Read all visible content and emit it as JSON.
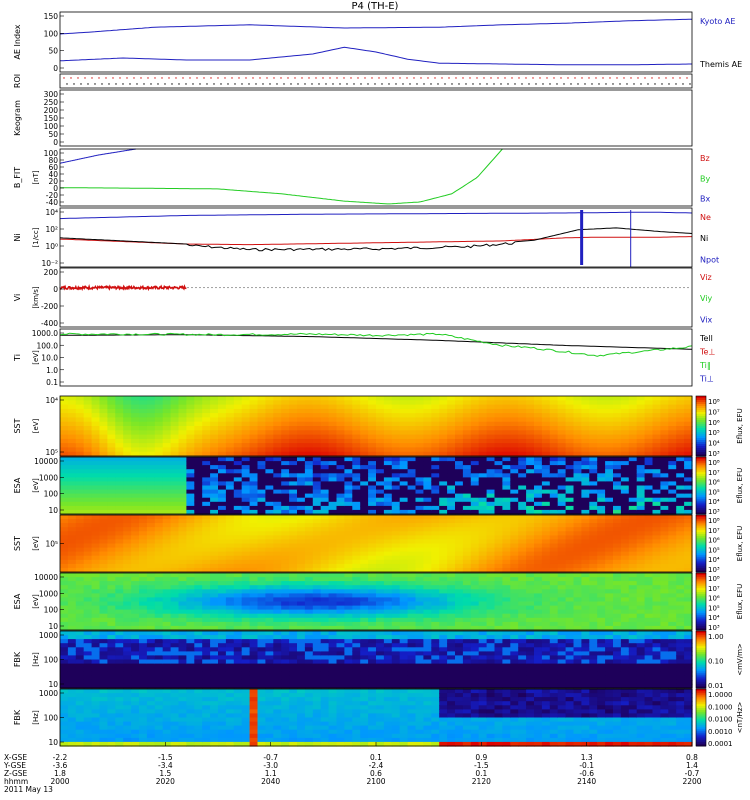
{
  "title": "P4 (TH-E)",
  "date_label": "2011 May 13",
  "colors": {
    "black": "#000000",
    "blue": "#2020c0",
    "red": "#d01010",
    "green": "#22cc22"
  },
  "chart_data": [
    {
      "type": "line",
      "id": "ae",
      "ylabel": "AE Index",
      "ylim": [
        0,
        150
      ],
      "yticks": [
        "150",
        "100",
        "50",
        "0"
      ],
      "series": [
        {
          "name": "Kyoto AE",
          "color": "blue",
          "x": [
            0,
            0.05,
            0.15,
            0.3,
            0.45,
            0.6,
            0.7,
            0.8,
            0.9,
            1
          ],
          "values": [
            95,
            100,
            112,
            118,
            110,
            112,
            118,
            122,
            128,
            132
          ]
        },
        {
          "name": "Themis AE",
          "color": "blue",
          "x": [
            0,
            0.1,
            0.2,
            0.3,
            0.4,
            0.45,
            0.5,
            0.55,
            0.6,
            0.7,
            0.8,
            0.9,
            1
          ],
          "values": [
            28,
            35,
            30,
            30,
            45,
            62,
            50,
            32,
            22,
            20,
            18,
            18,
            20
          ]
        }
      ]
    },
    {
      "type": "roi",
      "id": "roi",
      "ylabel": "ROI"
    },
    {
      "type": "line",
      "id": "keo",
      "ylabel": "Keogram",
      "ylim": [
        0,
        300
      ],
      "yticks": [
        "300",
        "250",
        "200",
        "150",
        "100",
        "50",
        "0"
      ],
      "series": []
    },
    {
      "type": "line",
      "id": "bfit",
      "ylabel": "B_FIT",
      "unit": "[nT]",
      "ylim": [
        -40,
        100
      ],
      "yticks": [
        "100",
        "80",
        "60",
        "40",
        "20",
        "0",
        "-20",
        "-40"
      ],
      "series": [
        {
          "name": "Bz",
          "color": "red",
          "x": [],
          "values": []
        },
        {
          "name": "By",
          "color": "green",
          "x": [
            0,
            0.1,
            0.25,
            0.35,
            0.45,
            0.52,
            0.57,
            0.62,
            0.66,
            0.7
          ],
          "values": [
            5,
            4,
            2,
            -10,
            -28,
            -35,
            -30,
            -10,
            30,
            100
          ]
        },
        {
          "name": "Bx",
          "color": "blue",
          "x": [
            0,
            0.06,
            0.12
          ],
          "values": [
            65,
            85,
            100
          ]
        }
      ]
    },
    {
      "type": "line",
      "id": "ni",
      "ylabel": "Ni",
      "unit": "[1/cc]",
      "ylim": [
        -4.5,
        5
      ],
      "log": true,
      "yticks": [
        "10⁴",
        "10²",
        "10⁰",
        "10⁻²"
      ],
      "series": [
        {
          "name": "Ne",
          "color": "red",
          "x": [
            0,
            0.2,
            0.3,
            0.5,
            0.7,
            0.8,
            0.85,
            0.95,
            1
          ],
          "values": [
            0,
            -0.8,
            -0.9,
            -0.6,
            -0.3,
            0.2,
            0.3,
            0.3,
            0.4
          ]
        },
        {
          "name": "Ni",
          "color": "black",
          "x": [
            0,
            0.2,
            0.3,
            0.5,
            0.65,
            0.75,
            0.82,
            0.88,
            0.95,
            1
          ],
          "values": [
            0.2,
            -0.8,
            -1.5,
            -1.4,
            -1.0,
            -0.2,
            1.5,
            1.8,
            1.2,
            0.9
          ]
        },
        {
          "name": "Npot",
          "color": "blue",
          "x": [
            0,
            0.2,
            0.4,
            0.6,
            0.8,
            0.9,
            0.95,
            1
          ],
          "values": [
            3.3,
            3.8,
            4.0,
            4.1,
            4.2,
            4.3,
            4.3,
            4.2
          ]
        }
      ]
    },
    {
      "type": "line",
      "id": "vi",
      "ylabel": "Vi",
      "unit": "[km/s]",
      "ylim": [
        -600,
        300
      ],
      "yticks": [
        "200",
        "0",
        "-200",
        "-400"
      ],
      "series": [
        {
          "name": "Viz",
          "color": "red",
          "x": [
            0,
            0.2
          ],
          "values": [
            0,
            0
          ]
        },
        {
          "name": "Viy",
          "color": "green",
          "x": [],
          "values": []
        },
        {
          "name": "Vix",
          "color": "blue",
          "x": [],
          "values": []
        }
      ]
    },
    {
      "type": "line",
      "id": "ti",
      "ylabel": "Ti",
      "unit": "[eV]",
      "ylim": [
        -1.2,
        3.3
      ],
      "log": true,
      "yticks": [
        "1000.0",
        "100.0",
        "10.0",
        "1.0",
        "0.1"
      ],
      "series": [
        {
          "name": "Tell",
          "color": "black",
          "x": [
            0,
            0.2,
            0.4,
            0.6,
            0.8,
            1
          ],
          "values": [
            2.8,
            2.85,
            2.7,
            2.4,
            2.0,
            1.7
          ]
        },
        {
          "name": "Te⊥",
          "color": "red",
          "x": [],
          "values": []
        },
        {
          "name": "Ti‖",
          "color": "green",
          "x": [
            0,
            0.1,
            0.25,
            0.4,
            0.5,
            0.6,
            0.7,
            0.75,
            0.85,
            1
          ],
          "values": [
            2.9,
            2.9,
            2.85,
            2.9,
            2.8,
            2.9,
            2.0,
            1.8,
            1.2,
            1.9
          ]
        },
        {
          "name": "Ti⊥",
          "color": "blue",
          "x": [],
          "values": []
        }
      ]
    },
    {
      "type": "heatmap",
      "id": "sst1",
      "ylabel": "SST",
      "unit": "[eV]",
      "yticks": [
        "10⁴",
        "10⁵"
      ],
      "cbar_label": "Eflux, EFU",
      "cbar_ticks": [
        "10⁸",
        "10⁷",
        "10⁶",
        "10⁵",
        "10⁴",
        "10³"
      ]
    },
    {
      "type": "heatmap",
      "id": "esa1",
      "ylabel": "ESA",
      "unit": "[eV]",
      "yticks": [
        "10000",
        "1000",
        "100",
        "10"
      ],
      "cbar_label": "Eflux, EFU",
      "cbar_ticks": [
        "10⁸",
        "10⁷",
        "10⁶",
        "10⁵",
        "10⁴",
        "10³"
      ]
    },
    {
      "type": "heatmap",
      "id": "sst2",
      "ylabel": "SST",
      "unit": "[eV]",
      "yticks": [
        "10⁵"
      ],
      "cbar_label": "Eflux, EFU",
      "cbar_ticks": [
        "10⁸",
        "10⁷",
        "10⁶",
        "10⁵",
        "10⁴",
        "10³"
      ]
    },
    {
      "type": "heatmap",
      "id": "esa2",
      "ylabel": "ESA",
      "unit": "[eV]",
      "yticks": [
        "10000",
        "1000",
        "100",
        "10"
      ],
      "cbar_label": "Eflux, EFU",
      "cbar_ticks": [
        "10⁸",
        "10⁷",
        "10⁶",
        "10⁵",
        "10⁴",
        "10³"
      ]
    },
    {
      "type": "heatmap",
      "id": "fbk1",
      "ylabel": "FBK",
      "unit": "[Hz]",
      "yticks": [
        "1000",
        "100",
        "10"
      ],
      "cbar_label": "<mV/m>",
      "cbar_ticks": [
        "1.00",
        "0.10",
        "0.01"
      ]
    },
    {
      "type": "heatmap",
      "id": "fbk2",
      "ylabel": "FBK",
      "unit": "[Hz]",
      "yticks": [
        "1000",
        "100",
        "10"
      ],
      "cbar_label": "<nT/Hz>",
      "cbar_ticks": [
        "1.0000",
        "0.1000",
        "0.0100",
        "0.0010",
        "0.0001"
      ]
    }
  ],
  "x_axis": {
    "row_labels": [
      "X-GSE",
      "Y-GSE",
      "Z-GSE",
      "hhmm"
    ],
    "columns": [
      [
        "-2.2",
        "-3.6",
        "1.8",
        "2000"
      ],
      [
        "-1.5",
        "-3.4",
        "1.5",
        "2020"
      ],
      [
        "-0.7",
        "-3.0",
        "1.1",
        "2040"
      ],
      [
        "0.1",
        "-2.4",
        "0.6",
        "2100"
      ],
      [
        "0.9",
        "-1.5",
        "0.1",
        "2120"
      ],
      [
        "1.3",
        "-0.1",
        "-0.6",
        "2140"
      ],
      [
        "0.8",
        "1.4",
        "-0.7",
        "2200"
      ]
    ]
  }
}
